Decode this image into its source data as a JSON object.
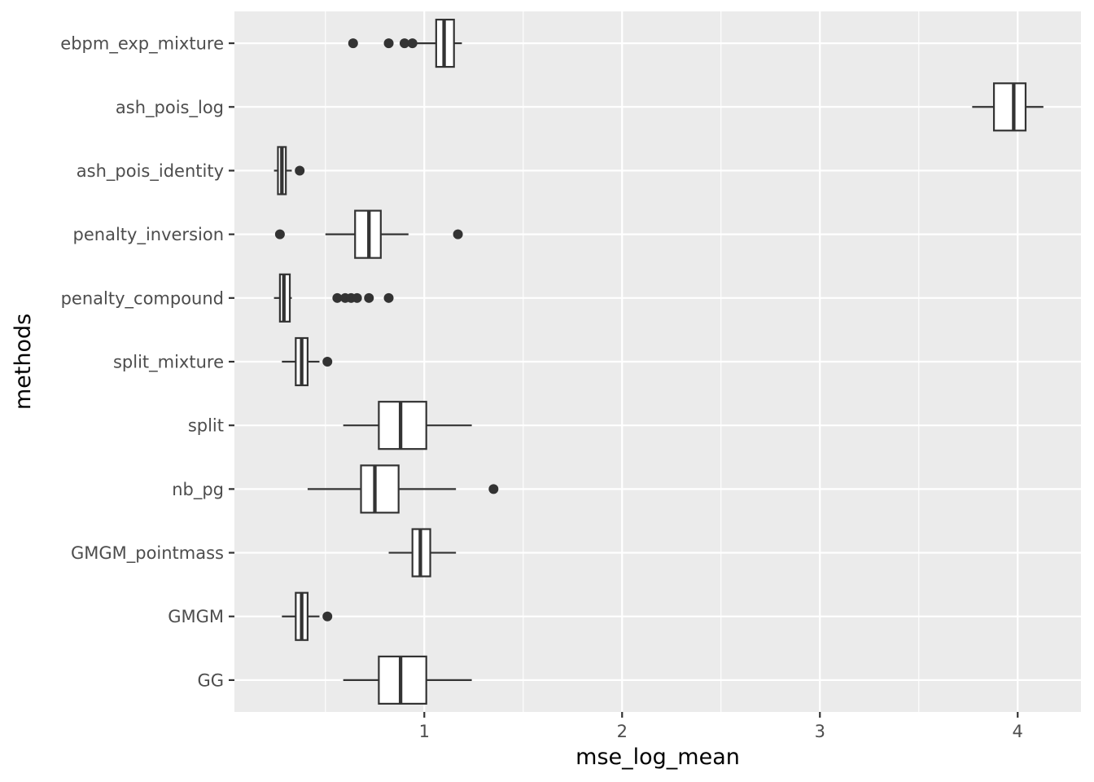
{
  "chart_data": {
    "type": "boxplot",
    "orientation": "horizontal",
    "title": "",
    "xlabel": "mse_log_mean",
    "ylabel": "methods",
    "xlim": [
      0.04,
      4.32
    ],
    "x_ticks": [
      1,
      2,
      3,
      4
    ],
    "x_tick_labels": [
      "1",
      "2",
      "3",
      "4"
    ],
    "x_minor_ticks": [
      0.5,
      1.5,
      2.5,
      3.5
    ],
    "grid": true,
    "colors": {
      "panel_background": "#ebebeb",
      "grid": "#ffffff",
      "box_fill": "#ffffff",
      "box_stroke": "#333333",
      "outlier": "#333333"
    },
    "categories": [
      "ebpm_exp_mixture",
      "ash_pois_log",
      "ash_pois_identity",
      "penalty_inversion",
      "penalty_compound",
      "split_mixture",
      "split",
      "nb_pg",
      "GMGM_pointmass",
      "GMGM",
      "GG"
    ],
    "boxes": [
      {
        "method": "ebpm_exp_mixture",
        "whisker_low": 0.96,
        "q1": 1.06,
        "median": 1.1,
        "q3": 1.15,
        "whisker_high": 1.19,
        "outliers": [
          0.64,
          0.82,
          0.9,
          0.94
        ]
      },
      {
        "method": "ash_pois_log",
        "whisker_low": 3.77,
        "q1": 3.88,
        "median": 3.98,
        "q3": 4.04,
        "whisker_high": 4.13,
        "outliers": []
      },
      {
        "method": "ash_pois_identity",
        "whisker_low": 0.24,
        "q1": 0.26,
        "median": 0.28,
        "q3": 0.3,
        "whisker_high": 0.33,
        "outliers": [
          0.37
        ]
      },
      {
        "method": "penalty_inversion",
        "whisker_low": 0.5,
        "q1": 0.65,
        "median": 0.72,
        "q3": 0.78,
        "whisker_high": 0.92,
        "outliers": [
          0.27,
          1.17
        ]
      },
      {
        "method": "penalty_compound",
        "whisker_low": 0.24,
        "q1": 0.27,
        "median": 0.29,
        "q3": 0.32,
        "whisker_high": 0.33,
        "outliers": [
          0.56,
          0.6,
          0.63,
          0.66,
          0.72,
          0.82
        ]
      },
      {
        "method": "split_mixture",
        "whisker_low": 0.28,
        "q1": 0.35,
        "median": 0.38,
        "q3": 0.41,
        "whisker_high": 0.47,
        "outliers": [
          0.51
        ]
      },
      {
        "method": "split",
        "whisker_low": 0.59,
        "q1": 0.77,
        "median": 0.88,
        "q3": 1.01,
        "whisker_high": 1.24,
        "outliers": []
      },
      {
        "method": "nb_pg",
        "whisker_low": 0.41,
        "q1": 0.68,
        "median": 0.75,
        "q3": 0.87,
        "whisker_high": 1.16,
        "outliers": [
          1.35
        ]
      },
      {
        "method": "GMGM_pointmass",
        "whisker_low": 0.82,
        "q1": 0.94,
        "median": 0.98,
        "q3": 1.03,
        "whisker_high": 1.16,
        "outliers": []
      },
      {
        "method": "GMGM",
        "whisker_low": 0.28,
        "q1": 0.35,
        "median": 0.38,
        "q3": 0.41,
        "whisker_high": 0.47,
        "outliers": [
          0.51
        ]
      },
      {
        "method": "GG",
        "whisker_low": 0.59,
        "q1": 0.77,
        "median": 0.88,
        "q3": 1.01,
        "whisker_high": 1.24,
        "outliers": []
      }
    ]
  }
}
